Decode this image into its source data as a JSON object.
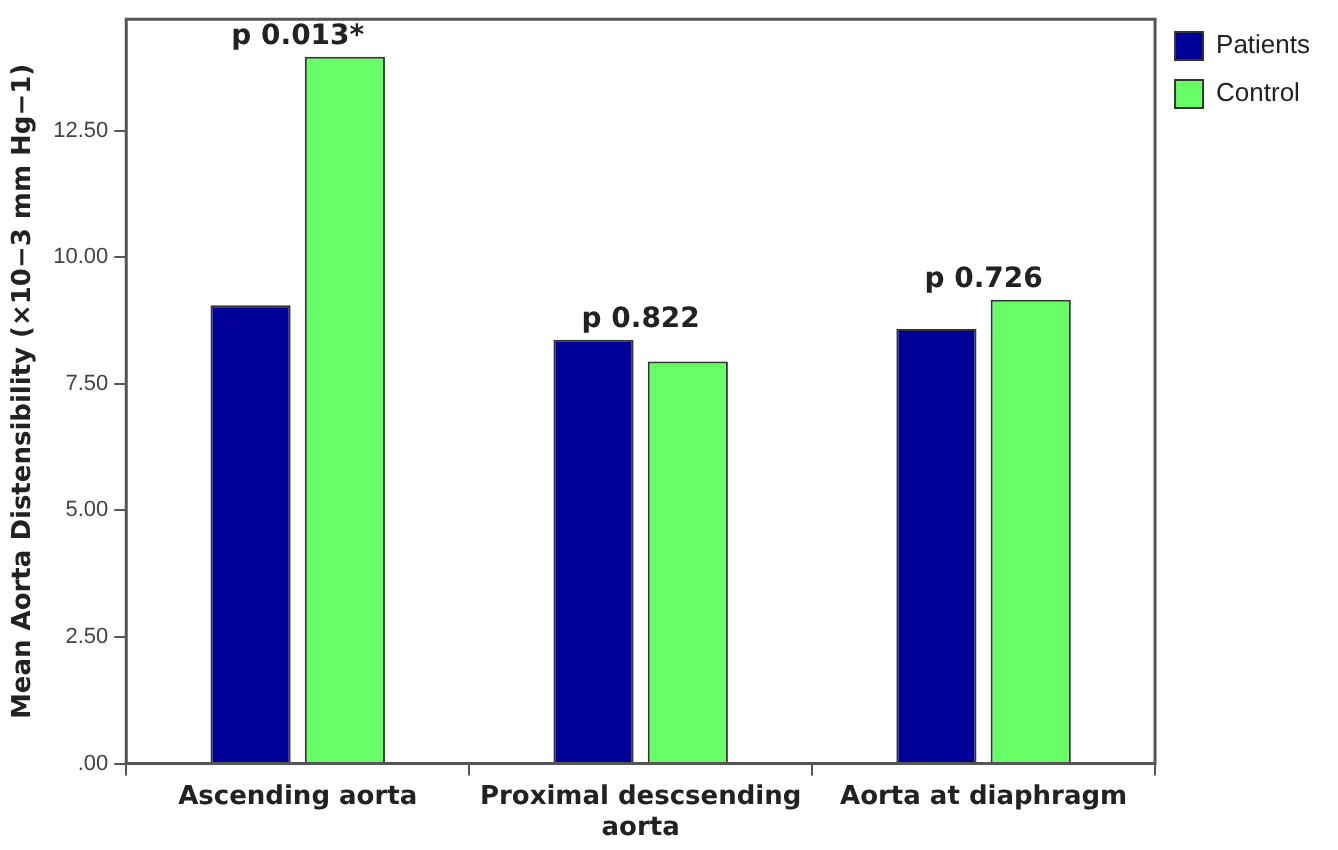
{
  "chart_data": {
    "type": "bar",
    "ylabel": "Mean Aorta Distensibility (×10−3 mm Hg−1)",
    "categories": [
      "Ascending aorta",
      "Proximal descsending aorta",
      "Aorta at diaphragm"
    ],
    "series": [
      {
        "name": "Patients",
        "color": "#000099",
        "values": [
          9.05,
          8.37,
          8.58
        ]
      },
      {
        "name": "Control",
        "color": "#66ff66",
        "values": [
          13.96,
          7.94,
          9.16
        ]
      }
    ],
    "ylim": [
      0,
      14.7
    ],
    "yticks": [
      {
        "value": 0,
        "label": ".00"
      },
      {
        "value": 2.5,
        "label": "2.50"
      },
      {
        "value": 5,
        "label": "5.00"
      },
      {
        "value": 7.5,
        "label": "7.50"
      },
      {
        "value": 10,
        "label": "10.00"
      },
      {
        "value": 12.5,
        "label": "12.50"
      }
    ],
    "annotations": [
      {
        "text": "p 0.013*",
        "x": "Ascending aorta",
        "y": 13.96
      },
      {
        "text": "p 0.822",
        "x": "Proximal descsending aorta",
        "y": 8.37
      },
      {
        "text": "p 0.726",
        "x": "Aorta at diaphragm",
        "y": 9.16
      }
    ],
    "legend": "top right",
    "grid": false
  }
}
